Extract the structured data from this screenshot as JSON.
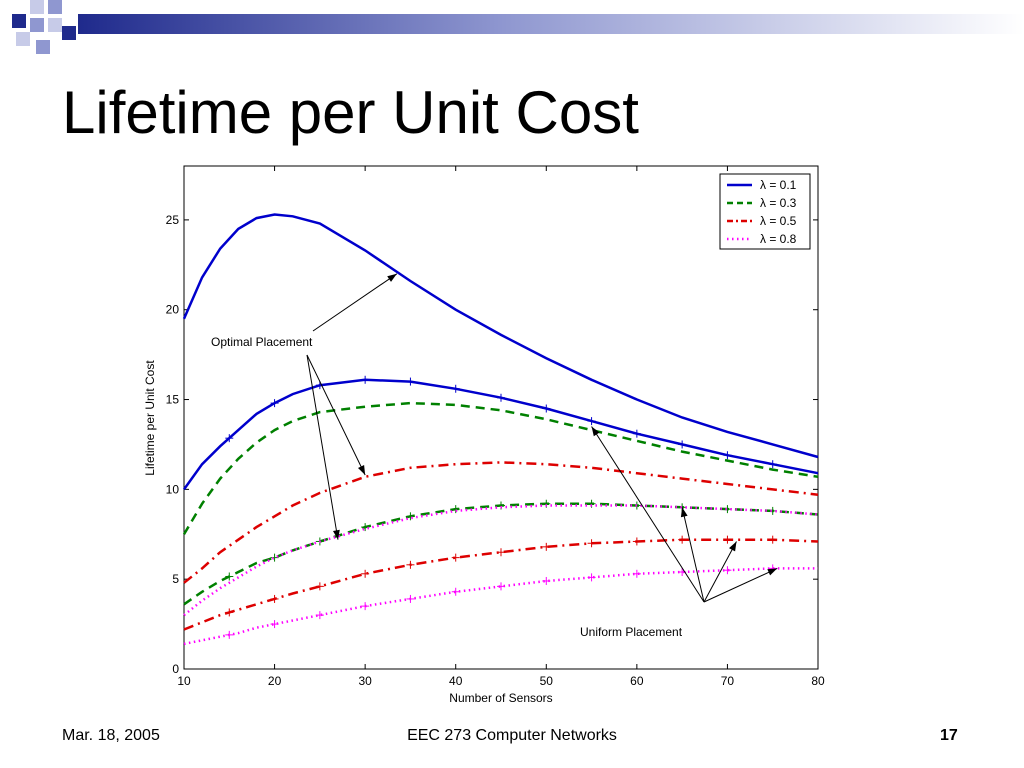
{
  "slide": {
    "title": "Lifetime per Unit Cost",
    "footer_date": "Mar. 18, 2005",
    "footer_course": "EEC 273 Computer Networks",
    "page_number": "17",
    "accent_colors": [
      "#1F2A8C",
      "#8F97D0",
      "#C7CBE8"
    ]
  },
  "chart_data": {
    "type": "line",
    "xlabel": "Number of Sensors",
    "ylabel": "Lifetime per Unit Cost",
    "xlim": [
      10,
      80
    ],
    "ylim": [
      0,
      28
    ],
    "xticks": [
      10,
      20,
      30,
      40,
      50,
      60,
      70,
      80
    ],
    "yticks": [
      0,
      5,
      10,
      15,
      20,
      25
    ],
    "x": [
      10,
      12,
      14,
      16,
      18,
      20,
      22,
      25,
      30,
      35,
      40,
      45,
      50,
      55,
      60,
      65,
      70,
      75,
      80
    ],
    "legend_position": "top-right",
    "series": [
      {
        "name": "λ = 0.1",
        "placement": "optimal",
        "color": "#0000CC",
        "style": "solid",
        "values": [
          19.5,
          21.8,
          23.4,
          24.5,
          25.1,
          25.3,
          25.2,
          24.8,
          23.3,
          21.6,
          20.0,
          18.6,
          17.3,
          16.1,
          15.0,
          14.0,
          13.2,
          12.5,
          11.8
        ]
      },
      {
        "name": "λ = 0.1",
        "placement": "uniform",
        "color": "#0000CC",
        "style": "solid",
        "values": [
          10.0,
          11.4,
          12.4,
          13.3,
          14.2,
          14.8,
          15.3,
          15.8,
          16.1,
          16.0,
          15.6,
          15.1,
          14.5,
          13.8,
          13.1,
          12.5,
          11.9,
          11.4,
          10.9
        ]
      },
      {
        "name": "λ = 0.3",
        "placement": "optimal",
        "color": "#008000",
        "style": "dashed",
        "values": [
          7.5,
          9.2,
          10.6,
          11.7,
          12.6,
          13.3,
          13.8,
          14.3,
          14.6,
          14.8,
          14.7,
          14.4,
          13.9,
          13.3,
          12.7,
          12.1,
          11.6,
          11.1,
          10.7
        ]
      },
      {
        "name": "λ = 0.3",
        "placement": "uniform",
        "color": "#008000",
        "style": "dashed",
        "values": [
          3.6,
          4.3,
          4.9,
          5.4,
          5.9,
          6.2,
          6.6,
          7.1,
          7.9,
          8.5,
          8.9,
          9.1,
          9.2,
          9.2,
          9.1,
          9.0,
          8.9,
          8.8,
          8.6
        ]
      },
      {
        "name": "λ = 0.5",
        "placement": "optimal",
        "color": "#DD0000",
        "style": "dashdot",
        "values": [
          4.8,
          5.6,
          6.5,
          7.2,
          7.9,
          8.5,
          9.1,
          9.8,
          10.7,
          11.2,
          11.4,
          11.5,
          11.4,
          11.2,
          10.9,
          10.6,
          10.3,
          10.0,
          9.7
        ]
      },
      {
        "name": "λ = 0.5",
        "placement": "uniform",
        "color": "#DD0000",
        "style": "dashdot",
        "values": [
          2.2,
          2.6,
          3.0,
          3.3,
          3.6,
          3.9,
          4.2,
          4.6,
          5.3,
          5.8,
          6.2,
          6.5,
          6.8,
          7.0,
          7.1,
          7.2,
          7.2,
          7.2,
          7.1
        ]
      },
      {
        "name": "λ = 0.8",
        "placement": "optimal",
        "color": "#FF00FF",
        "style": "dotted",
        "values": [
          3.0,
          3.8,
          4.5,
          5.1,
          5.7,
          6.2,
          6.6,
          7.1,
          7.8,
          8.4,
          8.8,
          9.0,
          9.1,
          9.1,
          9.1,
          9.0,
          8.9,
          8.8,
          8.6
        ]
      },
      {
        "name": "λ = 0.8",
        "placement": "uniform",
        "color": "#FF00FF",
        "style": "dotted",
        "values": [
          1.4,
          1.6,
          1.8,
          2.0,
          2.3,
          2.5,
          2.7,
          3.0,
          3.5,
          3.9,
          4.3,
          4.6,
          4.9,
          5.1,
          5.3,
          5.4,
          5.5,
          5.6,
          5.6
        ]
      }
    ],
    "annotations": [
      {
        "text": "Optimal Placement",
        "arrow_targets": [
          [
            33.5,
            22.0
          ],
          [
            30.0,
            10.8
          ],
          [
            27.0,
            7.2
          ]
        ]
      },
      {
        "text": "Uniform Placement",
        "arrow_targets": [
          [
            55.0,
            13.5
          ],
          [
            65.0,
            9.0
          ],
          [
            71.0,
            7.1
          ],
          [
            75.5,
            5.6
          ]
        ]
      }
    ]
  }
}
